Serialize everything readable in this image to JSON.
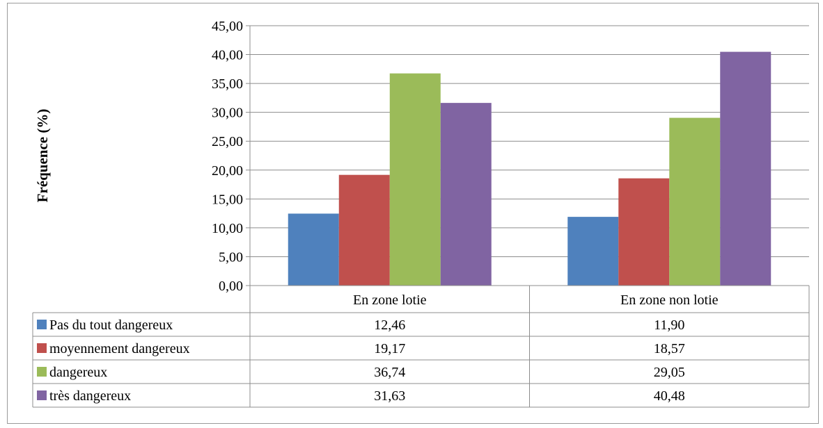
{
  "chart_data": {
    "type": "bar",
    "ylabel": "Fréquence (%)",
    "xlabel": "",
    "ylim": [
      0,
      45
    ],
    "ytick_step": 5,
    "ytick_labels": [
      "0,00",
      "5,00",
      "10,00",
      "15,00",
      "20,00",
      "25,00",
      "30,00",
      "35,00",
      "40,00",
      "45,00"
    ],
    "grid": true,
    "legend": "data-table",
    "categories": [
      "En zone lotie",
      "En zone non lotie"
    ],
    "series": [
      {
        "name": "Pas du tout dangereux",
        "color": "#4f81bd",
        "values": [
          12.46,
          11.9
        ],
        "labels": [
          "12,46",
          "11,90"
        ]
      },
      {
        "name": "moyennement dangereux",
        "color": "#c0504d",
        "values": [
          19.17,
          18.57
        ],
        "labels": [
          "19,17",
          "18,57"
        ]
      },
      {
        "name": "dangereux",
        "color": "#9bbb59",
        "values": [
          36.74,
          29.05
        ],
        "labels": [
          "36,74",
          "29,05"
        ]
      },
      {
        "name": "très dangereux",
        "color": "#8064a2",
        "values": [
          31.63,
          40.48
        ],
        "labels": [
          "31,63",
          "40,48"
        ]
      }
    ]
  }
}
